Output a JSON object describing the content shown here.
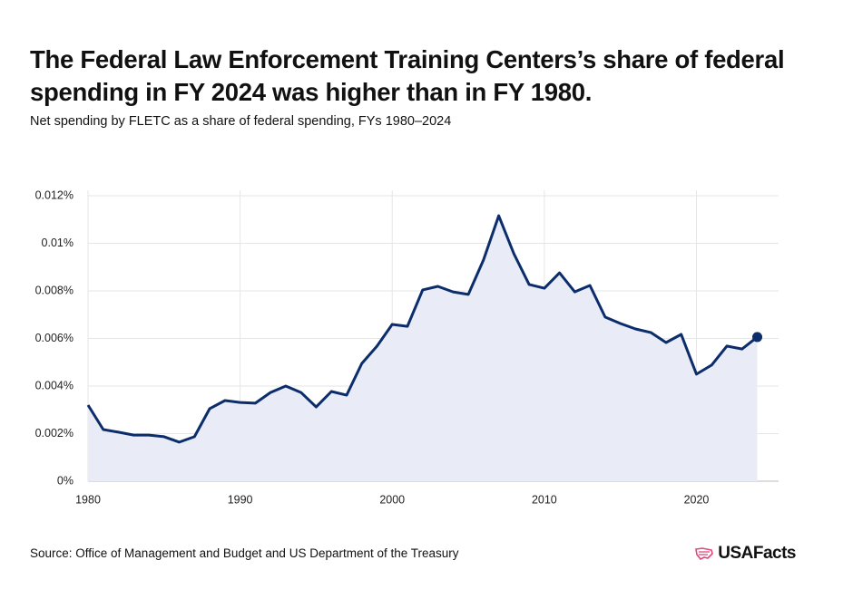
{
  "chart_data": {
    "type": "line",
    "title": "The Federal Law Enforcement Training Centers’s share of federal spending in FY 2024 was higher than in FY 1980.",
    "subtitle": "Net spending by FLETC as a share of federal spending, FYs 1980–2024",
    "source": "Source: Office of Management and Budget and US Department of the Treasury",
    "brand": "USAFacts",
    "x": [
      1980,
      1981,
      1982,
      1983,
      1984,
      1985,
      1986,
      1987,
      1988,
      1989,
      1990,
      1991,
      1992,
      1993,
      1994,
      1995,
      1996,
      1997,
      1998,
      1999,
      2000,
      2001,
      2002,
      2003,
      2004,
      2005,
      2006,
      2007,
      2008,
      2009,
      2010,
      2011,
      2012,
      2013,
      2014,
      2015,
      2016,
      2017,
      2018,
      2019,
      2020,
      2021,
      2022,
      2023,
      2024
    ],
    "series": [
      {
        "name": "FLETC share of federal spending",
        "color": "#0c2d6b",
        "values": [
          0.0032,
          0.00217,
          0.00206,
          0.00194,
          0.00194,
          0.00187,
          0.00164,
          0.00187,
          0.00305,
          0.00339,
          0.00331,
          0.00328,
          0.00373,
          0.004,
          0.00373,
          0.00312,
          0.00377,
          0.00362,
          0.00495,
          0.00568,
          0.00659,
          0.00651,
          0.00804,
          0.00819,
          0.00796,
          0.00785,
          0.0093,
          0.01116,
          0.00956,
          0.00827,
          0.00811,
          0.00876,
          0.00796,
          0.00823,
          0.0069,
          0.00663,
          0.0064,
          0.00625,
          0.00583,
          0.00617,
          0.0045,
          0.00488,
          0.00568,
          0.00556,
          0.00606
        ]
      }
    ],
    "area_color": "#e9ecf6",
    "xlim": [
      1980,
      2025.4
    ],
    "xticks": [
      1980,
      1990,
      2000,
      2010,
      2020
    ],
    "ylim": [
      0,
      0.012
    ],
    "yticks": [
      {
        "value": 0,
        "label": "0%"
      },
      {
        "value": 0.002,
        "label": "0.002%"
      },
      {
        "value": 0.004,
        "label": "0.004%"
      },
      {
        "value": 0.006,
        "label": "0.006%"
      },
      {
        "value": 0.008,
        "label": "0.008%"
      },
      {
        "value": 0.01,
        "label": "0.01%"
      },
      {
        "value": 0.012,
        "label": "0.012%"
      }
    ],
    "grid": true
  }
}
